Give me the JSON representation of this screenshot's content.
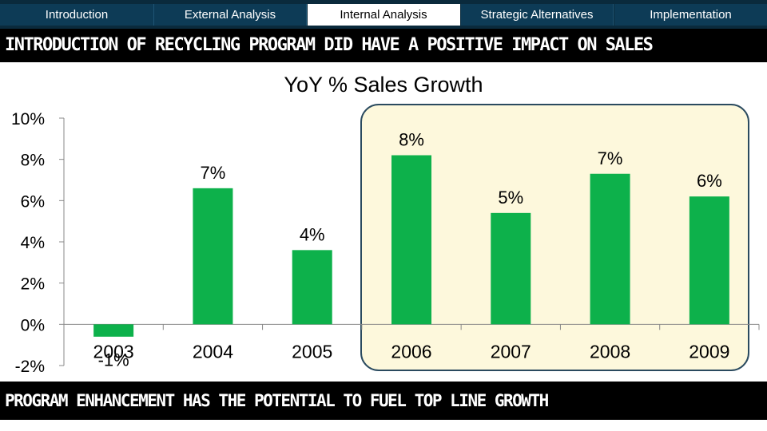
{
  "nav": {
    "tabs": [
      {
        "label": "Introduction",
        "active": false
      },
      {
        "label": "External Analysis",
        "active": false
      },
      {
        "label": "Internal Analysis",
        "active": true
      },
      {
        "label": "Strategic Alternatives",
        "active": false
      },
      {
        "label": "Implementation",
        "active": false
      }
    ]
  },
  "headline": "INTRODUCTION OF RECYCLING PROGRAM DID HAVE A POSITIVE IMPACT ON SALES",
  "footer": "PROGRAM ENHANCEMENT HAS THE POTENTIAL TO FUEL TOP LINE GROWTH",
  "colors": {
    "bar": "#0db14b",
    "highlight_fill": "#fdf8dc",
    "highlight_stroke": "#2a4a5f",
    "nav_bg": "#0a2a3c"
  },
  "chart_data": {
    "type": "bar",
    "title": "YoY % Sales Growth",
    "categories": [
      "2003",
      "2004",
      "2005",
      "2006",
      "2007",
      "2008",
      "2009"
    ],
    "values": [
      -0.6,
      6.6,
      3.6,
      8.2,
      5.4,
      7.3,
      6.2
    ],
    "data_labels": [
      "-1%",
      "7%",
      "4%",
      "8%",
      "5%",
      "7%",
      "6%"
    ],
    "yticks": [
      -2,
      0,
      2,
      4,
      6,
      8,
      10
    ],
    "ytick_labels": [
      "-2%",
      "0%",
      "2%",
      "4%",
      "6%",
      "8%",
      "10%"
    ],
    "ylim": [
      -2,
      10
    ],
    "highlight_range": [
      "2006",
      "2009"
    ]
  }
}
